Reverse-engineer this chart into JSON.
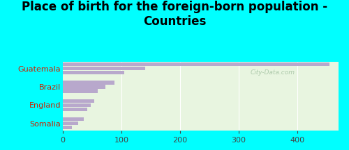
{
  "title": "Place of birth for the foreign-born population -\nCountries",
  "categories": [
    "Guatemala",
    "Brazil",
    "England",
    "Somalia"
  ],
  "bar_values": [
    [
      454,
      140,
      105
    ],
    [
      88,
      72,
      60
    ],
    [
      53,
      47,
      42
    ],
    [
      36,
      26,
      15
    ]
  ],
  "bar_color": "#b8a8cc",
  "bg_outer": "#00ffff",
  "bg_plot": "#e8f5e0",
  "xlim": [
    0,
    470
  ],
  "xticks": [
    0,
    100,
    200,
    300,
    400
  ],
  "title_fontsize": 12,
  "tick_fontsize": 8,
  "label_fontsize": 8,
  "watermark": "City-Data.com"
}
